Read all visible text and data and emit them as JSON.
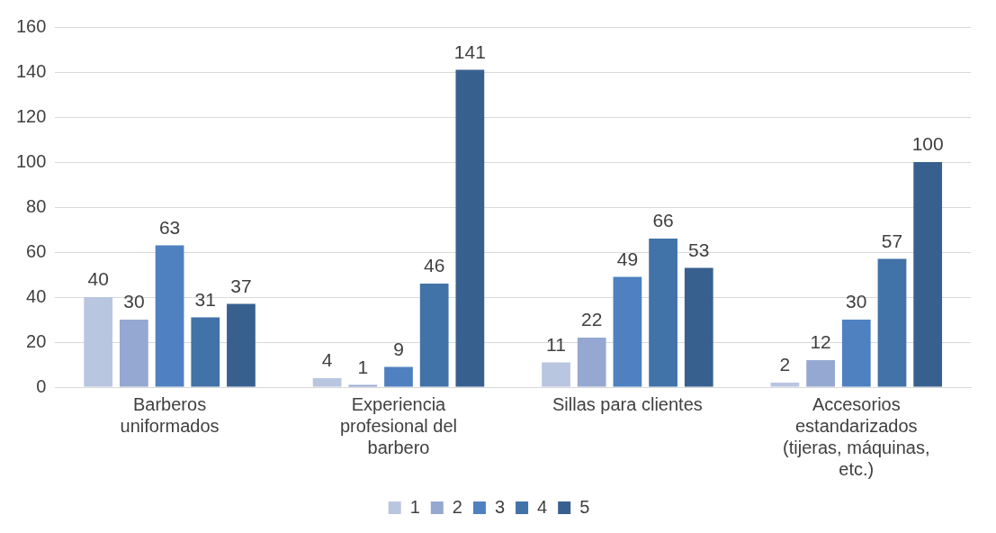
{
  "chart_data": {
    "type": "bar",
    "categories": [
      "Barberos uniformados",
      "Experiencia profesional del barbero",
      "Sillas para clientes",
      "Accesorios estandarizados (tijeras, máquinas, etc.)"
    ],
    "series": [
      {
        "name": "1",
        "color": "#b9c6e0",
        "values": [
          40,
          4,
          11,
          2
        ]
      },
      {
        "name": "2",
        "color": "#95a8d1",
        "values": [
          30,
          1,
          22,
          12
        ]
      },
      {
        "name": "3",
        "color": "#4f81c1",
        "values": [
          63,
          9,
          49,
          30
        ]
      },
      {
        "name": "4",
        "color": "#4172a8",
        "values": [
          31,
          46,
          66,
          57
        ]
      },
      {
        "name": "5",
        "color": "#38608f",
        "values": [
          37,
          141,
          53,
          100
        ]
      }
    ],
    "ylim": [
      0,
      160
    ],
    "yticks": [
      0,
      20,
      40,
      60,
      80,
      100,
      120,
      140,
      160
    ],
    "grid": "y",
    "legend": "bottom",
    "data_labels": true
  }
}
